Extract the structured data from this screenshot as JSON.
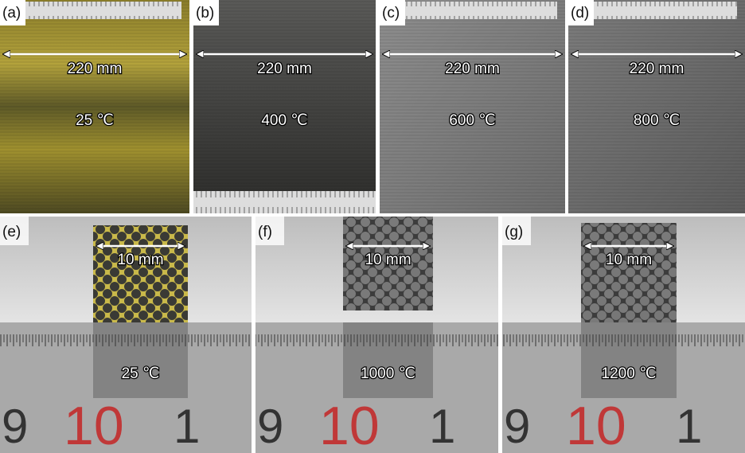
{
  "panels_top": [
    {
      "label": "(a)",
      "width_label": "220 mm",
      "temperature": "25 ℃"
    },
    {
      "label": "(b)",
      "width_label": "220 mm",
      "temperature": "400 ℃"
    },
    {
      "label": "(c)",
      "width_label": "220 mm",
      "temperature": "600 ℃"
    },
    {
      "label": "(d)",
      "width_label": "220 mm",
      "temperature": "800 ℃"
    }
  ],
  "panels_bottom": [
    {
      "label": "(e)",
      "width_label": "10 mm",
      "temperature": "25 ℃"
    },
    {
      "label": "(f)",
      "width_label": "10 mm",
      "temperature": "1000 ℃"
    },
    {
      "label": "(g)",
      "width_label": "10 mm",
      "temperature": "1200 ℃"
    }
  ],
  "ruler_digits": [
    "9",
    "10",
    "1"
  ]
}
